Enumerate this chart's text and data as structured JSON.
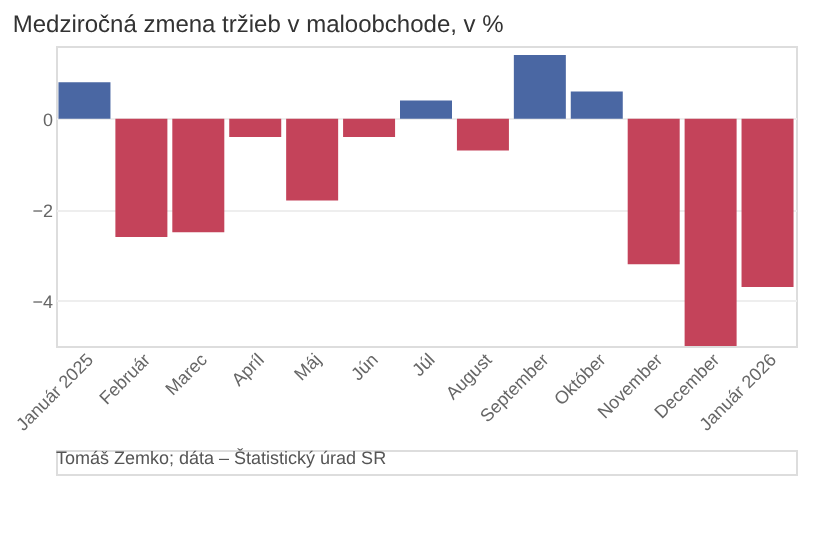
{
  "chart_data": {
    "type": "bar",
    "title": "Medziročná zmena tržieb v maloobchode, v %",
    "categories": [
      "Január 2025",
      "Február",
      "Marec",
      "Apríl",
      "Máj",
      "Jún",
      "Júl",
      "August",
      "September",
      "Október",
      "November",
      "December",
      "Január 2026"
    ],
    "values": [
      0.8,
      -2.6,
      -2.5,
      -0.4,
      -1.8,
      -0.4,
      0.4,
      -0.7,
      1.4,
      0.6,
      -3.2,
      -5.0,
      -3.7
    ],
    "colors": [
      "#4a67a3",
      "#c4435a",
      "#c4435a",
      "#c4435a",
      "#c4435a",
      "#c4435a",
      "#4a67a3",
      "#c4435a",
      "#4a67a3",
      "#4a67a3",
      "#c4435a",
      "#c4435a",
      "#c4435a"
    ],
    "ylim": [
      -5,
      1.6
    ],
    "yticks": [
      -4,
      -2,
      0
    ],
    "grid": "y",
    "annotations": [
      "Tomáš Zemko; dáta – Štatistický úrad SR"
    ]
  }
}
